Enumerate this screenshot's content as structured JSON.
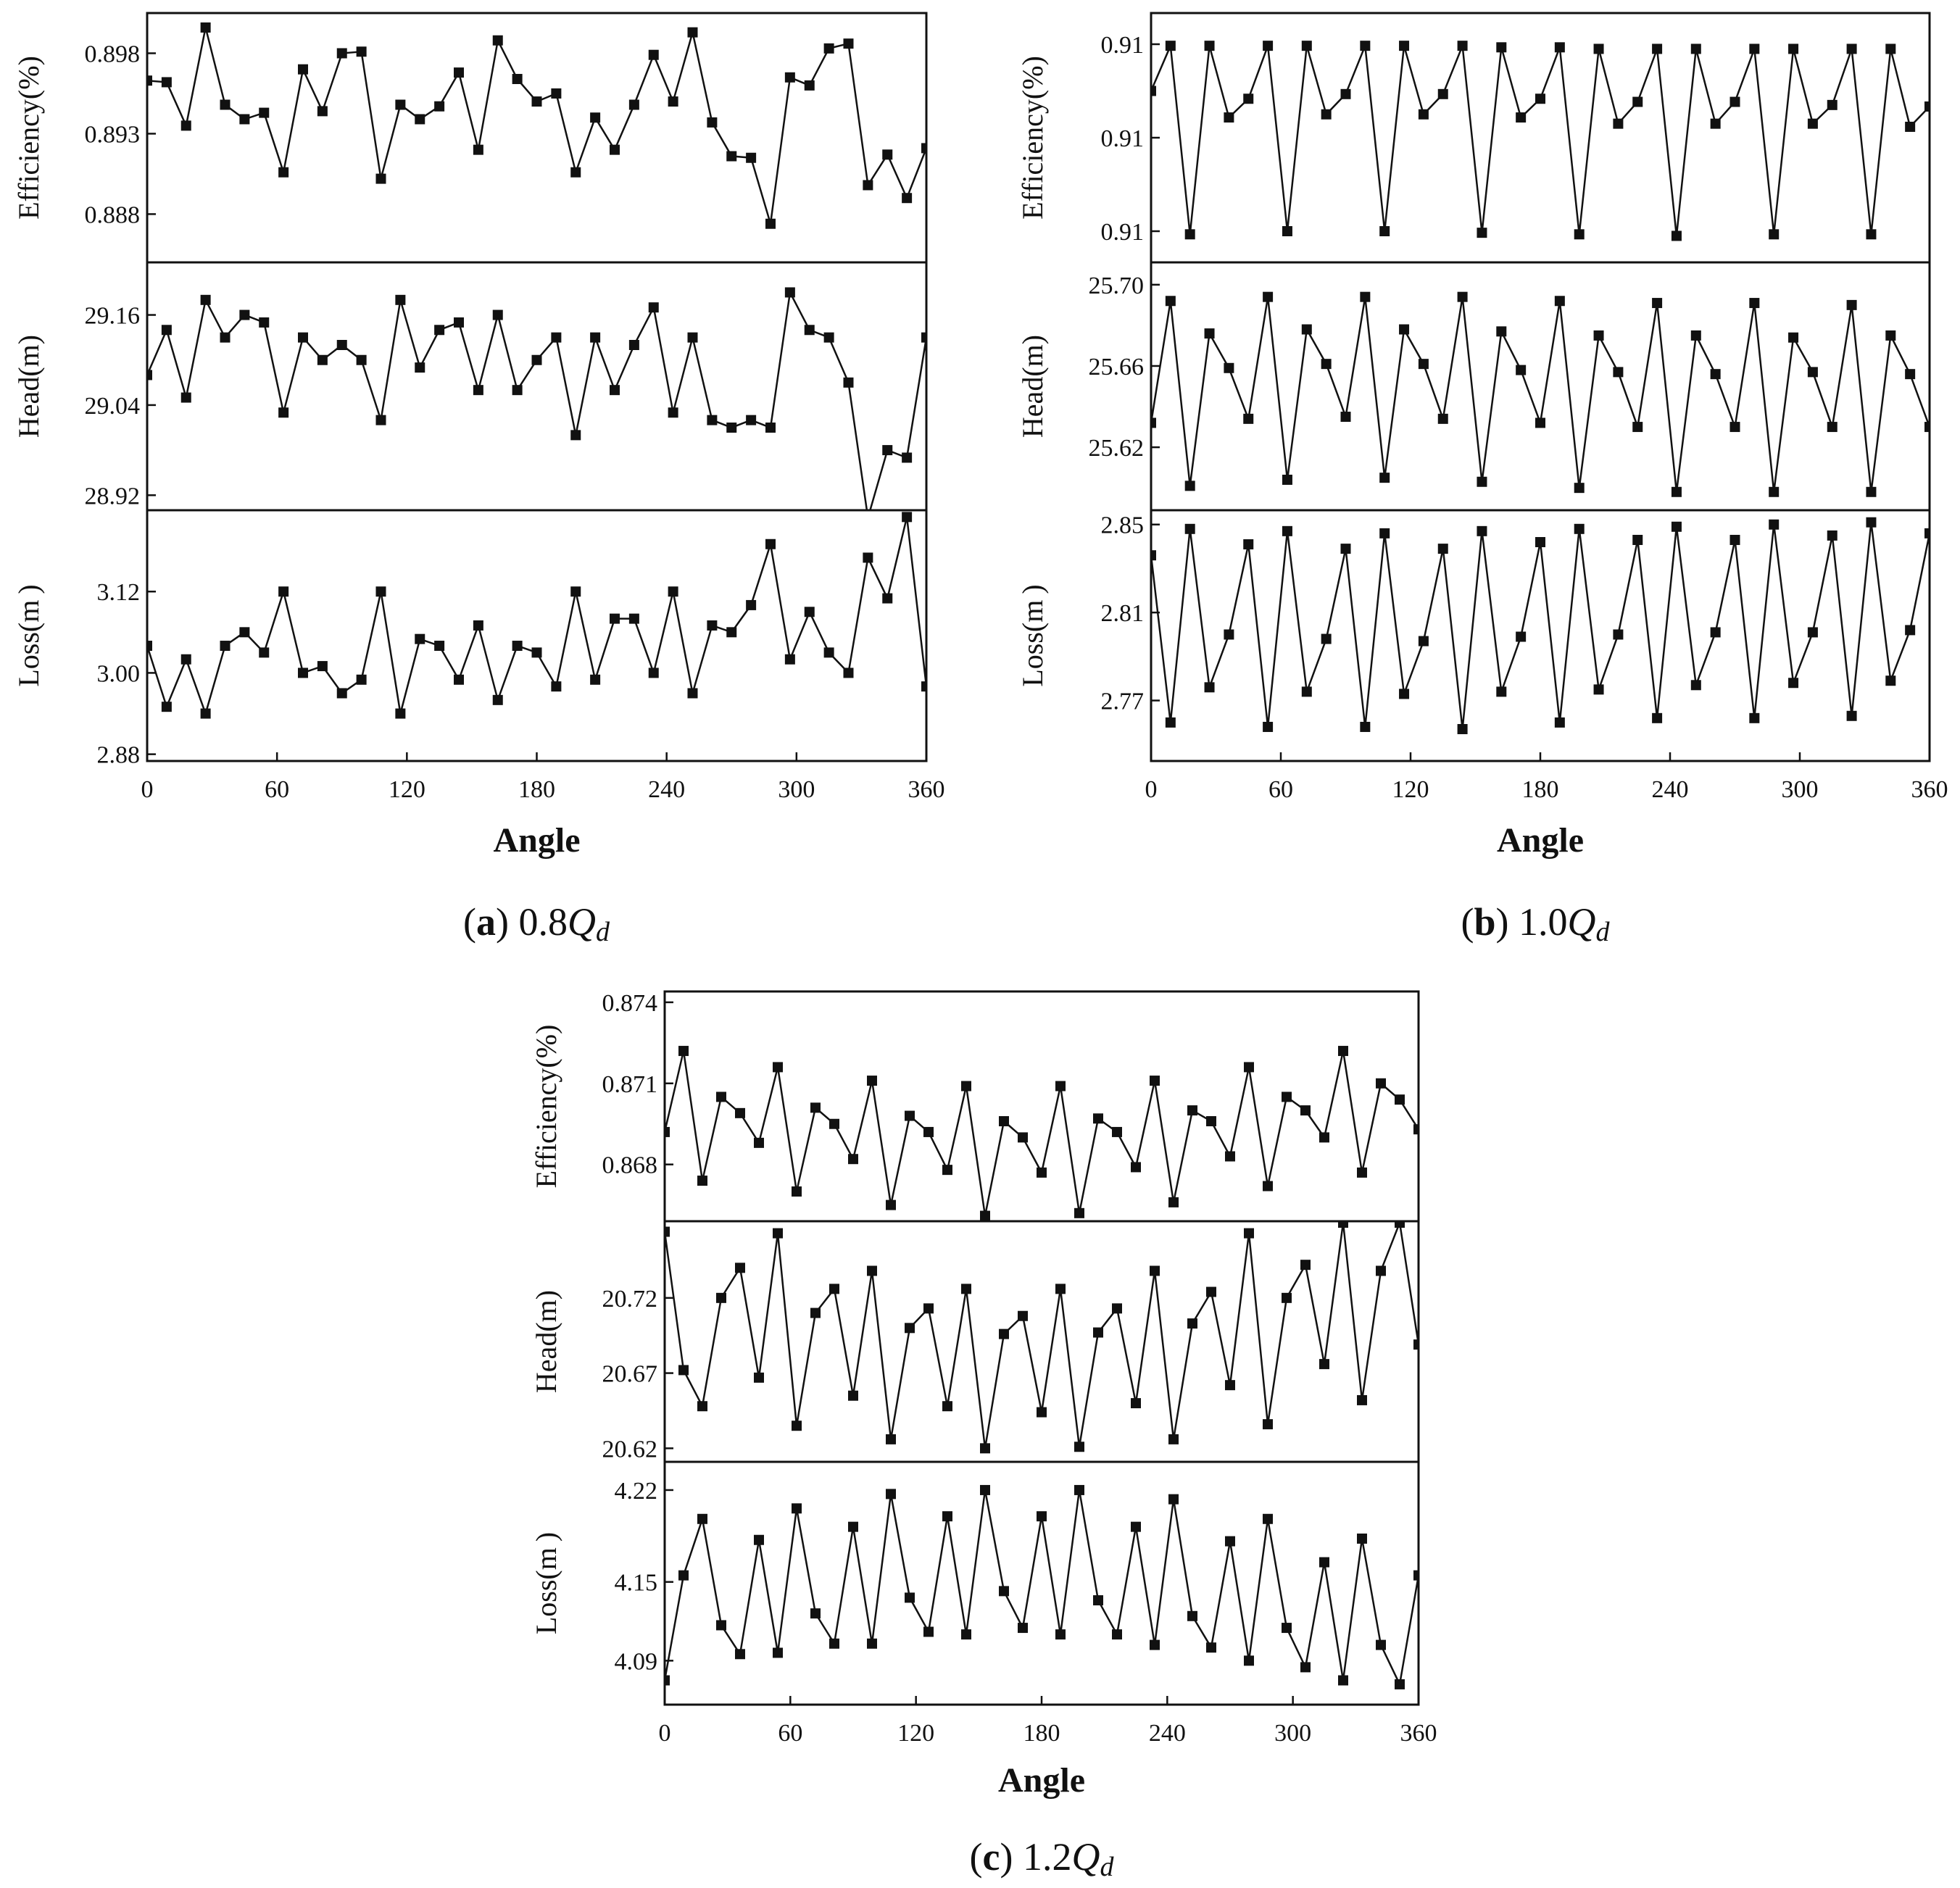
{
  "chart_data": [
    {
      "type": "line",
      "panel": "a",
      "caption": {
        "letter": "a",
        "flow": "0.8",
        "q": "Q",
        "sub": "d"
      },
      "xlabel": "Angle",
      "xlim": [
        0,
        360
      ],
      "xticks": [
        0,
        60,
        120,
        180,
        240,
        300,
        360
      ],
      "x": [
        0,
        9,
        18,
        27,
        36,
        45,
        54,
        63,
        72,
        81,
        90,
        99,
        108,
        117,
        126,
        135,
        144,
        153,
        162,
        171,
        180,
        189,
        198,
        207,
        216,
        225,
        234,
        243,
        252,
        261,
        270,
        279,
        288,
        297,
        306,
        315,
        324,
        333,
        342,
        351,
        360
      ],
      "subplots": [
        {
          "ylabel": "Efficiency(%)",
          "ylim": [
            0.885,
            0.9005
          ],
          "yticks": [
            0.888,
            0.893,
            0.898
          ],
          "ytick_labels": [
            "0.888",
            "0.893",
            "0.898"
          ],
          "values": [
            0.8963,
            0.8962,
            0.8935,
            0.8996,
            0.8948,
            0.8939,
            0.8943,
            0.8906,
            0.897,
            0.8944,
            0.898,
            0.8981,
            0.8902,
            0.8948,
            0.8939,
            0.8947,
            0.8968,
            0.892,
            0.8988,
            0.8964,
            0.895,
            0.8955,
            0.8906,
            0.894,
            0.892,
            0.8948,
            0.8979,
            0.895,
            0.8993,
            0.8937,
            0.8916,
            0.8915,
            0.8874,
            0.8965,
            0.896,
            0.8983,
            0.8986,
            0.8898,
            0.8917,
            0.889,
            0.8921
          ]
        },
        {
          "ylabel": "Head(m)",
          "ylim": [
            28.9,
            29.23
          ],
          "yticks": [
            28.92,
            29.04,
            29.16
          ],
          "ytick_labels": [
            "28.92",
            "29.04",
            "29.16"
          ],
          "values": [
            29.08,
            29.14,
            29.05,
            29.18,
            29.13,
            29.16,
            29.15,
            29.03,
            29.13,
            29.1,
            29.12,
            29.1,
            29.02,
            29.18,
            29.09,
            29.14,
            29.15,
            29.06,
            29.16,
            29.06,
            29.1,
            29.13,
            29.0,
            29.13,
            29.06,
            29.12,
            29.17,
            29.03,
            29.13,
            29.02,
            29.01,
            29.02,
            29.01,
            29.19,
            29.14,
            29.13,
            29.07,
            28.89,
            28.98,
            28.97,
            29.13
          ]
        },
        {
          "ylabel": "Loss(m )",
          "ylim": [
            2.87,
            3.24
          ],
          "yticks": [
            2.88,
            3.0,
            3.12
          ],
          "ytick_labels": [
            "2.88",
            "3.00",
            "3.12"
          ],
          "values": [
            3.04,
            2.95,
            3.02,
            2.94,
            3.04,
            3.06,
            3.03,
            3.12,
            3.0,
            3.01,
            2.97,
            2.99,
            3.12,
            2.94,
            3.05,
            3.04,
            2.99,
            3.07,
            2.96,
            3.04,
            3.03,
            2.98,
            3.12,
            2.99,
            3.08,
            3.08,
            3.0,
            3.12,
            2.97,
            3.07,
            3.06,
            3.1,
            3.19,
            3.02,
            3.09,
            3.03,
            3.0,
            3.17,
            3.11,
            3.23,
            2.98
          ]
        }
      ]
    },
    {
      "type": "line",
      "panel": "b",
      "caption": {
        "letter": "b",
        "flow": "1.0",
        "q": "Q",
        "sub": "d"
      },
      "xlabel": "Angle",
      "xlim": [
        0,
        360
      ],
      "xticks": [
        0,
        60,
        120,
        180,
        240,
        300,
        360
      ],
      "x": [
        0,
        9,
        18,
        27,
        36,
        45,
        54,
        63,
        72,
        81,
        90,
        99,
        108,
        117,
        126,
        135,
        144,
        153,
        162,
        171,
        180,
        189,
        198,
        207,
        216,
        225,
        234,
        243,
        252,
        261,
        270,
        279,
        288,
        297,
        306,
        315,
        324,
        333,
        342,
        351,
        360
      ],
      "subplots": [
        {
          "ylabel": "Efficiency(%)",
          "ylim": [
            0.9096,
            0.9112
          ],
          "yticks": [
            0.9098,
            0.9104,
            0.911
          ],
          "ytick_labels": [
            "0.91",
            "0.91",
            "0.91"
          ],
          "values": [
            0.9107,
            0.91099,
            0.90978,
            0.91099,
            0.91053,
            0.91065,
            0.91099,
            0.9098,
            0.91099,
            0.91055,
            0.91068,
            0.91099,
            0.9098,
            0.91099,
            0.91055,
            0.91068,
            0.91099,
            0.90979,
            0.91098,
            0.91053,
            0.91065,
            0.91098,
            0.90978,
            0.91097,
            0.91049,
            0.91063,
            0.91097,
            0.90977,
            0.91097,
            0.91049,
            0.91063,
            0.91097,
            0.90978,
            0.91097,
            0.91049,
            0.91061,
            0.91097,
            0.90978,
            0.91097,
            0.91047,
            0.9106
          ]
        },
        {
          "ylabel": "Head(m)",
          "ylim": [
            25.589,
            25.711
          ],
          "yticks": [
            25.62,
            25.66,
            25.7
          ],
          "ytick_labels": [
            "25.62",
            "25.66",
            "25.70"
          ],
          "values": [
            25.632,
            25.692,
            25.601,
            25.676,
            25.659,
            25.634,
            25.694,
            25.604,
            25.678,
            25.661,
            25.635,
            25.694,
            25.605,
            25.678,
            25.661,
            25.634,
            25.694,
            25.603,
            25.677,
            25.658,
            25.632,
            25.692,
            25.6,
            25.675,
            25.657,
            25.63,
            25.691,
            25.598,
            25.675,
            25.656,
            25.63,
            25.691,
            25.598,
            25.674,
            25.657,
            25.63,
            25.69,
            25.598,
            25.675,
            25.656,
            25.63
          ]
        },
        {
          "ylabel": "Loss(m )",
          "ylim": [
            2.7425,
            2.8565
          ],
          "yticks": [
            2.77,
            2.81,
            2.85
          ],
          "ytick_labels": [
            "2.77",
            "2.81",
            "2.85"
          ],
          "values": [
            2.836,
            2.76,
            2.848,
            2.776,
            2.8,
            2.841,
            2.758,
            2.847,
            2.774,
            2.798,
            2.839,
            2.758,
            2.846,
            2.773,
            2.797,
            2.839,
            2.757,
            2.847,
            2.774,
            2.799,
            2.842,
            2.76,
            2.848,
            2.775,
            2.8,
            2.843,
            2.762,
            2.849,
            2.777,
            2.801,
            2.843,
            2.762,
            2.85,
            2.778,
            2.801,
            2.845,
            2.763,
            2.851,
            2.779,
            2.802,
            2.846
          ]
        }
      ]
    },
    {
      "type": "line",
      "panel": "c",
      "caption": {
        "letter": "c",
        "flow": "1.2",
        "q": "Q",
        "sub": "d"
      },
      "xlabel": "Angle",
      "xlim": [
        0,
        360
      ],
      "xticks": [
        0,
        60,
        120,
        180,
        240,
        300,
        360
      ],
      "x": [
        0,
        9,
        18,
        27,
        36,
        45,
        54,
        63,
        72,
        81,
        90,
        99,
        108,
        117,
        126,
        135,
        144,
        153,
        162,
        171,
        180,
        189,
        198,
        207,
        216,
        225,
        234,
        243,
        252,
        261,
        270,
        279,
        288,
        297,
        306,
        315,
        324,
        333,
        342,
        351,
        360
      ],
      "subplots": [
        {
          "ylabel": "Efficiency(%)",
          "ylim": [
            0.8659,
            0.8744
          ],
          "yticks": [
            0.868,
            0.871,
            0.874
          ],
          "ytick_labels": [
            "0.868",
            "0.871",
            "0.874"
          ],
          "values": [
            0.8692,
            0.8722,
            0.8674,
            0.8705,
            0.8699,
            0.8688,
            0.8716,
            0.867,
            0.8701,
            0.8695,
            0.8682,
            0.8711,
            0.8665,
            0.8698,
            0.8692,
            0.8678,
            0.8709,
            0.8661,
            0.8696,
            0.869,
            0.8677,
            0.8709,
            0.8662,
            0.8697,
            0.8692,
            0.8679,
            0.8711,
            0.8666,
            0.87,
            0.8696,
            0.8683,
            0.8716,
            0.8672,
            0.8705,
            0.87,
            0.869,
            0.8722,
            0.8677,
            0.871,
            0.8704,
            0.8693
          ]
        },
        {
          "ylabel": "Head(m)",
          "ylim": [
            20.611,
            20.771
          ],
          "yticks": [
            20.62,
            20.67,
            20.72
          ],
          "ytick_labels": [
            "20.62",
            "20.67",
            "20.72"
          ],
          "values": [
            20.764,
            20.672,
            20.648,
            20.72,
            20.74,
            20.667,
            20.763,
            20.635,
            20.71,
            20.726,
            20.655,
            20.738,
            20.626,
            20.7,
            20.713,
            20.648,
            20.726,
            20.62,
            20.696,
            20.708,
            20.644,
            20.726,
            20.621,
            20.697,
            20.713,
            20.65,
            20.738,
            20.626,
            20.703,
            20.724,
            20.662,
            20.763,
            20.636,
            20.72,
            20.742,
            20.676,
            20.77,
            20.652,
            20.738,
            20.77,
            20.689
          ]
        },
        {
          "ylabel": "Loss(m )",
          "ylim": [
            4.0565,
            4.2415
          ],
          "yticks": [
            4.09,
            4.15,
            4.22
          ],
          "ytick_labels": [
            "4.09",
            "4.15",
            "4.22"
          ],
          "values": [
            4.075,
            4.155,
            4.198,
            4.117,
            4.095,
            4.182,
            4.096,
            4.206,
            4.126,
            4.103,
            4.192,
            4.103,
            4.217,
            4.138,
            4.112,
            4.2,
            4.11,
            4.22,
            4.143,
            4.115,
            4.2,
            4.11,
            4.22,
            4.136,
            4.11,
            4.192,
            4.102,
            4.213,
            4.124,
            4.1,
            4.181,
            4.09,
            4.198,
            4.115,
            4.085,
            4.165,
            4.075,
            4.183,
            4.102,
            4.072,
            4.155
          ]
        }
      ]
    }
  ]
}
